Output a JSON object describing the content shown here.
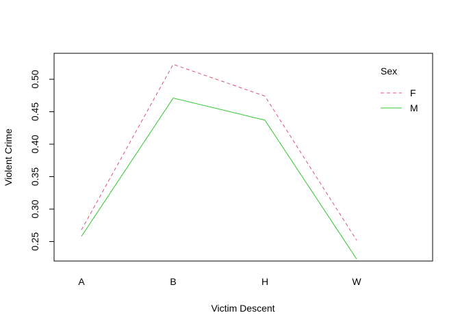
{
  "chart_data": {
    "type": "line",
    "title": "",
    "xlabel": "Victim Descent",
    "ylabel": "Violent Crime",
    "categories": [
      "A",
      "B",
      "H",
      "W"
    ],
    "ylim": [
      0.22,
      0.54
    ],
    "yticks": [
      "0.25",
      "0.30",
      "0.35",
      "0.40",
      "0.45",
      "0.50"
    ],
    "legend": {
      "title": "Sex",
      "placement": "top-right"
    },
    "series": [
      {
        "name": "F",
        "values": [
          0.268,
          0.523,
          0.474,
          0.252
        ],
        "color": "#DF536B",
        "line_style": "dashed"
      },
      {
        "name": "M",
        "values": [
          0.258,
          0.471,
          0.437,
          0.223
        ],
        "color": "#2FC72F",
        "line_style": "solid"
      }
    ],
    "grid": false
  }
}
